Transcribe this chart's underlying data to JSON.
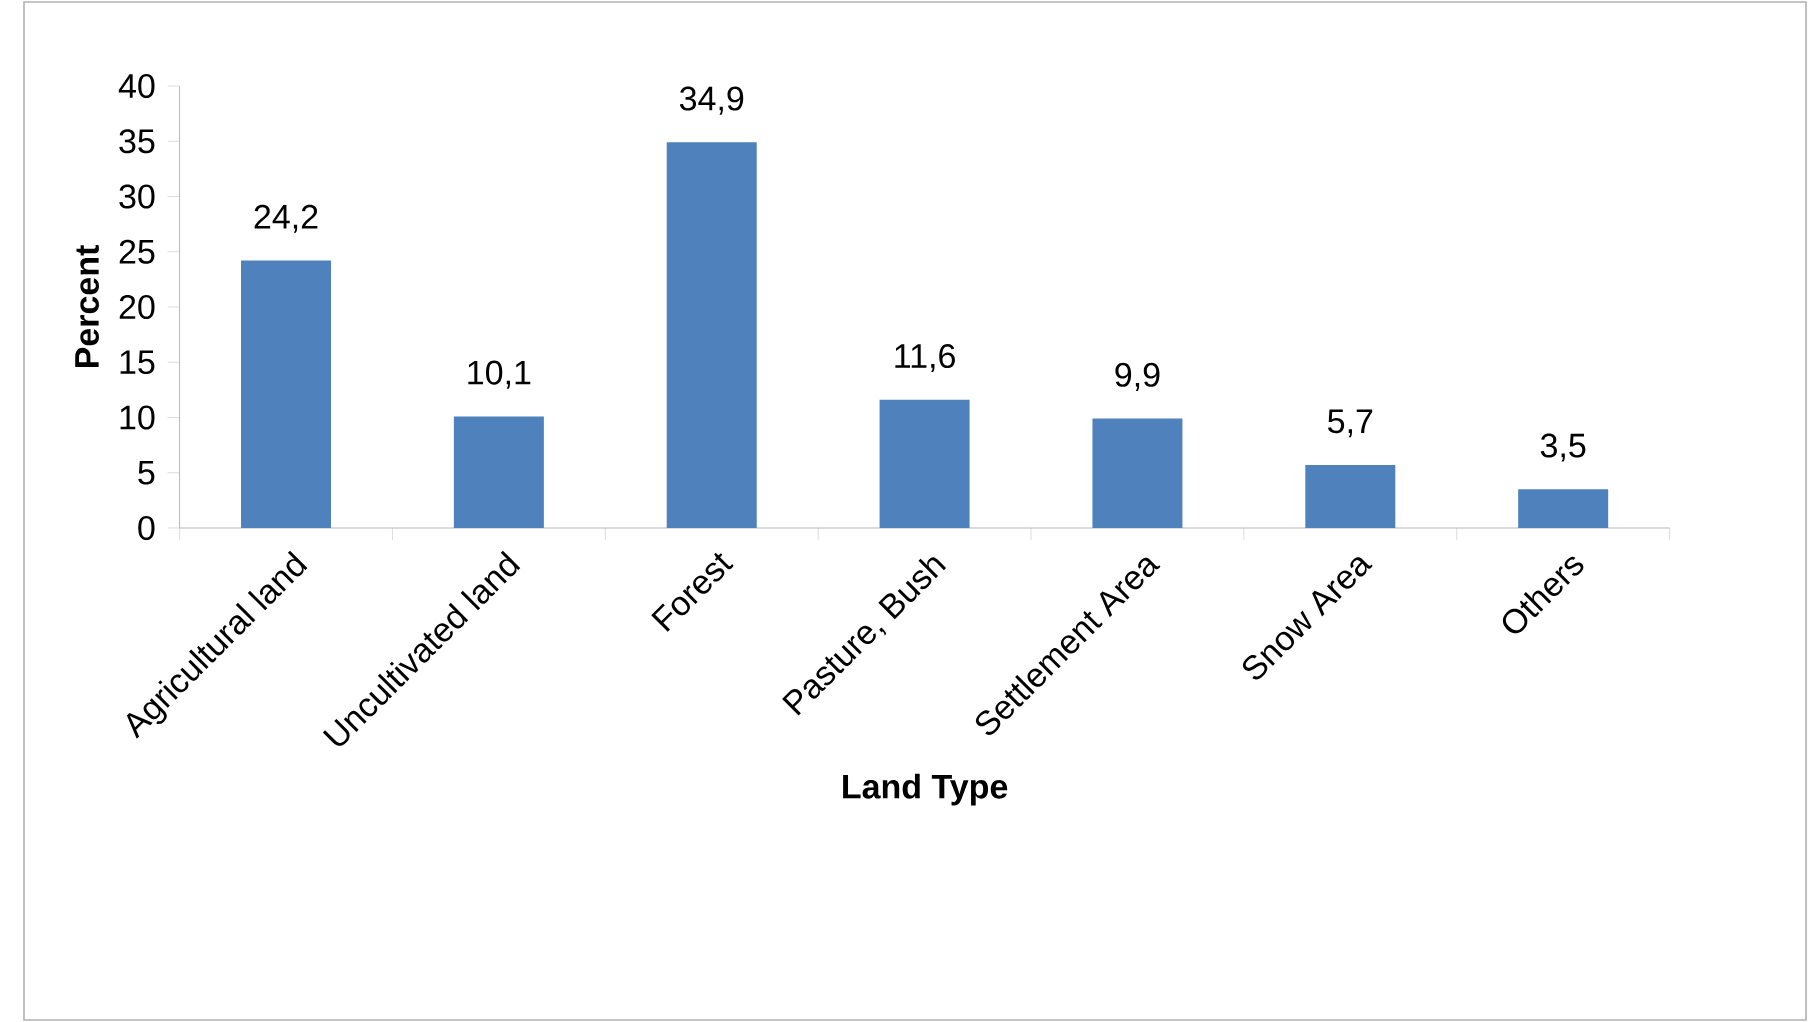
{
  "chart_data": {
    "type": "bar",
    "xlabel": "Land Type",
    "ylabel": "Percent",
    "categories": [
      "Agricultural land",
      "Uncultivated land",
      "Forest",
      "Pasture, Bush",
      "Settlement Area",
      "Snow Area",
      "Others"
    ],
    "values": [
      24.2,
      10.1,
      34.9,
      11.6,
      9.9,
      5.7,
      3.5
    ],
    "value_labels": [
      "24,2",
      "10,1",
      "34,9",
      "11,6",
      "9,9",
      "5,7",
      "3,5"
    ],
    "color": "#4f81bd",
    "ylim": [
      0,
      40
    ],
    "yticks": [
      0,
      5,
      10,
      15,
      20,
      25,
      30,
      35,
      40
    ]
  }
}
